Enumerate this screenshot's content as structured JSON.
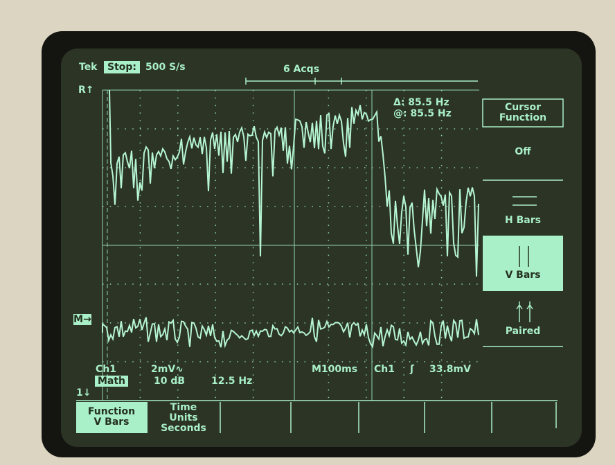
{
  "header": {
    "brand": "Tek",
    "state": "Stop:",
    "rate": "500 S/s",
    "acquisitions": "6 Acqs"
  },
  "readout": {
    "delta": "Δ: 85.5 Hz",
    "at": "@: 85.5 Hz"
  },
  "markers": {
    "ref": "R↑",
    "math": "M→",
    "ch1": "1↓"
  },
  "side_menu": [
    {
      "lines": [
        "Cursor",
        "Function"
      ]
    },
    {
      "lines": [
        "Off"
      ]
    },
    {
      "lines": [
        "H Bars"
      ]
    },
    {
      "lines": [
        "V Bars"
      ]
    },
    {
      "lines": [
        "Paired"
      ]
    }
  ],
  "status": {
    "channel": "Ch1",
    "scale": "2mV∿",
    "math": "Math",
    "math_scale": "10 dB",
    "math_freq": "12.5 Hz",
    "timebase": "M100ms",
    "trigger_source": "Ch1",
    "trigger_slope": "ʃ",
    "trigger_level": "33.8mV"
  },
  "bottom_menu": [
    {
      "lines": [
        "Function",
        "V Bars"
      ]
    },
    {
      "lines": [
        "Time",
        "Units",
        "Seconds"
      ]
    }
  ]
}
